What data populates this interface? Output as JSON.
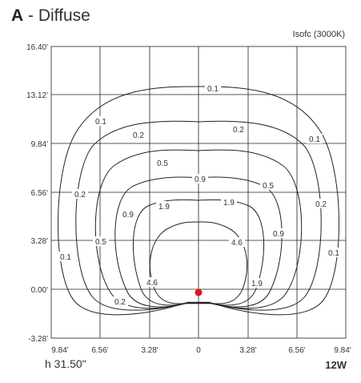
{
  "header": {
    "letter": "A",
    "title_rest": " - Diffuse",
    "subtitle": "Isofc (3000K)"
  },
  "footer": {
    "height_label": "h 31.50\"",
    "power_label": "12W"
  },
  "diagram": {
    "y_ticks": [
      "16.40'",
      "13.12'",
      "9.84'",
      "6.56'",
      "3.28'",
      "0.00'",
      "-3.28'"
    ],
    "x_ticks": [
      "9.84'",
      "6.56'",
      "3.28'",
      "0",
      "3.28'",
      "6.56'",
      "9.84'"
    ],
    "contour_labels": [
      "0.1",
      "0.2",
      "0.5",
      "0.9",
      "1.9",
      "4.6"
    ],
    "source_color": "#e0141e"
  }
}
